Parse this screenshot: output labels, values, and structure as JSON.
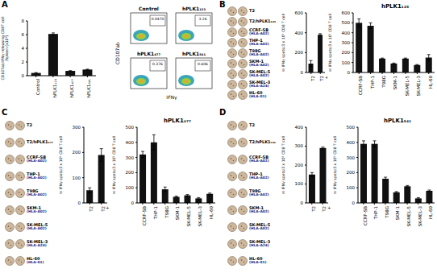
{
  "panel_labels": [
    "A",
    "B",
    "C",
    "D"
  ],
  "chart_data": [
    {
      "type": "bar",
      "categories": [
        "Control",
        "hPLK1₁₂₃",
        "hPLK1₄₇₇",
        "hPLK1₅₄₁"
      ],
      "values": [
        0.4,
        6.1,
        0.7,
        0.9
      ],
      "errors": [
        0.05,
        0.15,
        0.03,
        0.05
      ],
      "y_label": [
        "CD107ab/IFNγ-releasing CD8T cell",
        "/Spleen (x10³)"
      ],
      "ylim": [
        0,
        8
      ],
      "yticks": [
        0,
        2,
        4,
        6,
        8
      ],
      "color": "#111111"
    },
    {
      "type": "bar",
      "categories": [
        "T2",
        "T2 + hPLK1₁₂₃"
      ],
      "values": [
        90,
        380
      ],
      "errors": [
        30,
        10
      ],
      "y_label": "m IFNγ spots/3 x 10⁵ CD8 T cell",
      "ylim": [
        0,
        600
      ],
      "yticks": [
        0,
        200,
        400,
        600
      ],
      "color": "#111111"
    },
    {
      "type": "bar",
      "title": "hPLK1₁₂₃",
      "categories": [
        "CCRF-SB",
        "THP-1",
        "T98G",
        "SKM-1",
        "SK-MEL-5",
        "SK-MEL-3",
        "HL-60"
      ],
      "values": [
        500,
        470,
        140,
        90,
        140,
        75,
        150
      ],
      "errors": [
        40,
        30,
        5,
        5,
        5,
        5,
        30
      ],
      "y_label": "m IFNγ spots/3 x 10⁵ CD8 T cell",
      "ylim": [
        0,
        600
      ],
      "yticks": [
        0,
        100,
        200,
        300,
        400,
        500,
        600
      ],
      "color": "#111111"
    },
    {
      "type": "bar",
      "categories": [
        "T2",
        "T2 + hPLK1₄₇₇"
      ],
      "values": [
        50,
        190
      ],
      "errors": [
        10,
        25
      ],
      "y_label": "m IFNγ spots/3 x 10⁵ CD8 T cell",
      "ylim": [
        0,
        300
      ],
      "yticks": [
        0,
        100,
        200,
        300
      ],
      "color": "#111111"
    },
    {
      "type": "bar",
      "title": "hPLK1₄₇₇",
      "categories": [
        "CCRF-SB",
        "THP-1",
        "T98G",
        "SKM-1",
        "SK-MEL-5",
        "SK-MEL-3",
        "HL-60"
      ],
      "values": [
        320,
        400,
        90,
        40,
        50,
        30,
        60
      ],
      "errors": [
        20,
        50,
        15,
        5,
        5,
        5,
        5
      ],
      "y_label": "m IFNγ spots/3 x 10⁵ CD8 T cell",
      "ylim": [
        0,
        500
      ],
      "yticks": [
        0,
        100,
        200,
        300,
        400,
        500
      ],
      "color": "#111111"
    },
    {
      "type": "bar",
      "categories": [
        "T2",
        "T2 + hPLK1₅₄₁"
      ],
      "values": [
        150,
        290
      ],
      "errors": [
        10,
        5
      ],
      "y_label": "m IFNγ spots/3 x 10⁵ CD8 T cell",
      "ylim": [
        0,
        400
      ],
      "yticks": [
        0,
        100,
        200,
        300,
        400
      ],
      "color": "#111111"
    },
    {
      "type": "bar",
      "title": "hPLK1₅₄₁",
      "categories": [
        "CCRF-SB",
        "THP-1",
        "T98G",
        "SKM-1",
        "SK-MEL-5",
        "SK-MEL-3",
        "HL-60"
      ],
      "values": [
        390,
        390,
        160,
        70,
        110,
        30,
        80
      ],
      "errors": [
        20,
        20,
        10,
        5,
        5,
        5,
        5
      ],
      "y_label": "m IFNγ spots/3 x 10⁵ CD8 T cell",
      "ylim": [
        0,
        500
      ],
      "yticks": [
        0,
        100,
        200,
        300,
        400,
        500
      ],
      "color": "#111111"
    }
  ],
  "flow": {
    "y_label": "CD107ab",
    "x_label": "IFNγ",
    "plots": [
      {
        "name": "Control",
        "gate": {
          "value": 0.047,
          "label": "0.0470"
        }
      },
      {
        "name": "hPLK1₁₂₃",
        "gate": 3.26
      },
      {
        "name": "hPLK1₄₇₇",
        "gate": 0.376
      },
      {
        "name": "hPLK1₅₄₁",
        "gate": 0.606
      }
    ]
  },
  "wells": [
    [
      {
        "label": "T2"
      },
      {
        "label": "T2/hPLK1₁₂₃"
      },
      {
        "label": "CCRF-SB",
        "hla": "(HLA-A02)"
      },
      {
        "label": "THP-1",
        "hla": "(HLA-A02)"
      },
      {
        "label": "T98G",
        "hla": "(HLA-A02)"
      },
      {
        "label": "SKM-1",
        "hla": "(HLA-A02)"
      },
      {
        "label": "SK-MEL-5",
        "hla": "(HLA-A02)"
      },
      {
        "label": "SK-MEL-3",
        "hla": "(HLA-A24)"
      },
      {
        "label": "HL-60",
        "hla": "(HLA-01)"
      }
    ],
    [
      {
        "label": "T2"
      },
      {
        "label": "T2/hPLK1₄₇₇"
      },
      {
        "label": "CCRF-SB",
        "hla": "(HLA-A02)"
      },
      {
        "label": "THP-1",
        "hla": "(HLA-A02)"
      },
      {
        "label": "T98G",
        "hla": "(HLA-A02)"
      },
      {
        "label": "SKM-1",
        "hla": "(HLA-A02)"
      },
      {
        "label": "SK-MEL-5",
        "hla": "(HLA-A02)"
      },
      {
        "label": "SK-MEL-3",
        "hla": "(HLA-A24)"
      },
      {
        "label": "HL-60",
        "hla": "(HLA-01)"
      }
    ],
    [
      {
        "label": "T2"
      },
      {
        "label": "T2/hPLK1₅₄₁"
      },
      {
        "label": "CCRF-SB",
        "hla": "(HLA-A02)"
      },
      {
        "label": "THP-1",
        "hla": "(HLA-A02)"
      },
      {
        "label": "T98G",
        "hla": "(HLA-A02)"
      },
      {
        "label": "SKM-1",
        "hla": "(HLA-A02)"
      },
      {
        "label": "SK-MEL-5",
        "hla": "(HLA-A02)"
      },
      {
        "label": "SK-MEL-3",
        "hla": "(HLA-A24)"
      },
      {
        "label": "HL-60",
        "hla": "(HLA-01)"
      }
    ]
  ]
}
